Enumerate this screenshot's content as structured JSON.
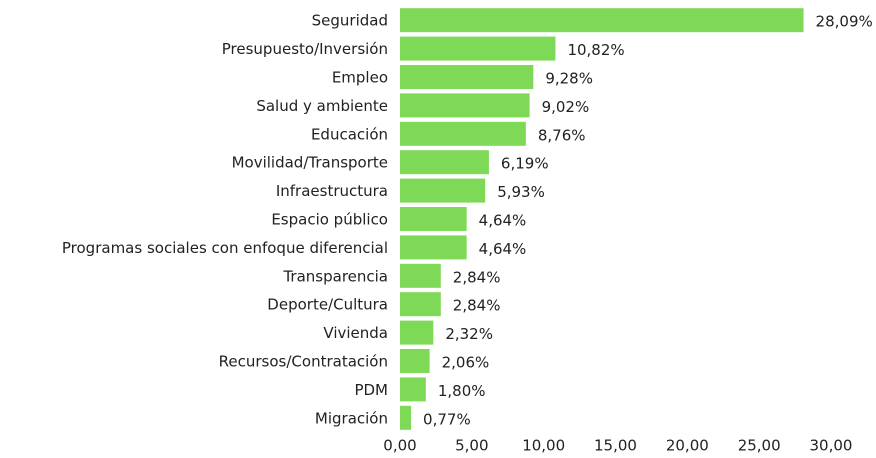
{
  "chart_data": {
    "type": "barh",
    "categories": [
      "Seguridad",
      "Presupuesto/Inversión",
      "Empleo",
      "Salud y ambiente",
      "Educación",
      "Movilidad/Transporte",
      "Infraestructura",
      "Espacio público",
      "Programas sociales con enfoque diferencial",
      "Transparencia",
      "Deporte/Cultura",
      "Vivienda",
      "Recursos/Contratación",
      "PDM",
      "Migración"
    ],
    "values": [
      28.09,
      10.82,
      9.28,
      9.02,
      8.76,
      6.19,
      5.93,
      4.64,
      4.64,
      2.84,
      2.84,
      2.32,
      2.06,
      1.8,
      0.77
    ],
    "value_labels": [
      "28,09%",
      "10,82%",
      "9,28%",
      "9,02%",
      "8,76%",
      "6,19%",
      "5,93%",
      "4,64%",
      "4,64%",
      "2,84%",
      "2,84%",
      "2,32%",
      "2,06%",
      "1,80%",
      "0,77%"
    ],
    "color": "#7ed957",
    "xlim": [
      0,
      30
    ],
    "xticks": [
      {
        "value": 0,
        "label": "0,00"
      },
      {
        "value": 5,
        "label": "5,00"
      },
      {
        "value": 10,
        "label": "10,00"
      },
      {
        "value": 15,
        "label": "15,00"
      },
      {
        "value": 20,
        "label": "20,00"
      },
      {
        "value": 25,
        "label": "25,00"
      },
      {
        "value": 30,
        "label": "30,00"
      }
    ],
    "grid": false
  }
}
